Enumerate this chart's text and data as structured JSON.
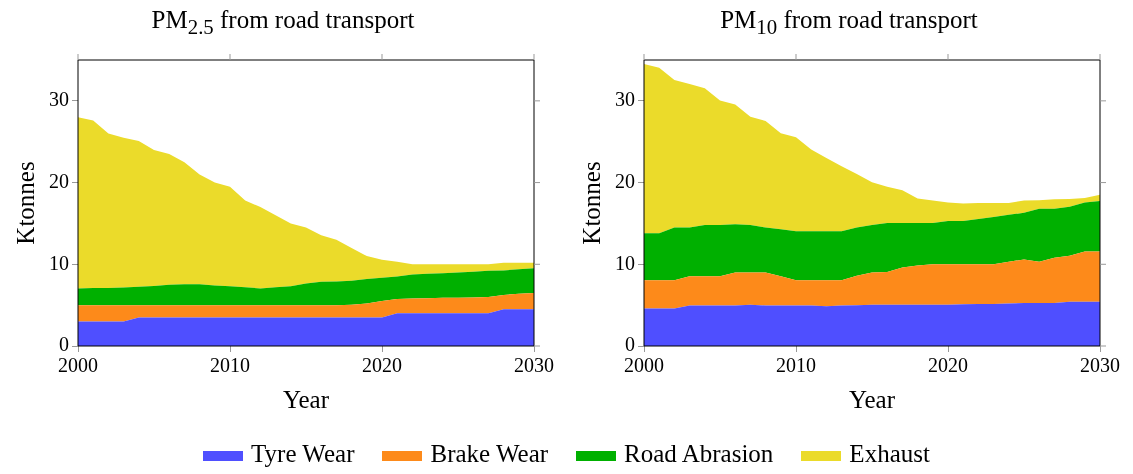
{
  "chart_data": [
    {
      "type": "area",
      "title": "PM$_{2.5}$ from road transport",
      "xlabel": "Year",
      "ylabel": "Ktonnes",
      "stacked": true,
      "legend": "bottom",
      "grid": false,
      "x": [
        2000,
        2001,
        2002,
        2003,
        2004,
        2005,
        2006,
        2007,
        2008,
        2009,
        2010,
        2011,
        2012,
        2013,
        2014,
        2015,
        2016,
        2017,
        2018,
        2019,
        2020,
        2021,
        2022,
        2023,
        2024,
        2025,
        2026,
        2027,
        2028,
        2029,
        2030
      ],
      "xlim": [
        2000,
        2030
      ],
      "xticks": [
        2000,
        2010,
        2020,
        2030
      ],
      "ylim": [
        0,
        35
      ],
      "yticks": [
        0,
        10,
        20,
        30
      ],
      "series": [
        {
          "name": "Tyre Wear",
          "color": "#4f4fff",
          "values": [
            3,
            3,
            3,
            3,
            3.5,
            3.5,
            3.5,
            3.5,
            3.5,
            3.5,
            3.5,
            3.5,
            3.5,
            3.5,
            3.5,
            3.5,
            3.5,
            3.5,
            3.5,
            3.5,
            3.5,
            4,
            4,
            4,
            4,
            4,
            4,
            4,
            4.5,
            4.5,
            4.5
          ]
        },
        {
          "name": "Brake Wear",
          "color": "#fd8a1a",
          "values": [
            2,
            2,
            2,
            2,
            1.5,
            1.5,
            1.5,
            1.5,
            1.5,
            1.5,
            1.5,
            1.5,
            1.5,
            1.5,
            1.5,
            1.5,
            1.5,
            1.5,
            1.55,
            1.7,
            2,
            1.75,
            1.8,
            1.85,
            1.9,
            1.9,
            1.95,
            2,
            1.75,
            1.9,
            2
          ]
        },
        {
          "name": "Road Abrasion",
          "color": "#00b000",
          "values": [
            2.05,
            2.1,
            2.1,
            2.15,
            2.25,
            2.35,
            2.5,
            2.55,
            2.55,
            2.4,
            2.3,
            2.2,
            2.05,
            2.2,
            2.3,
            2.65,
            2.85,
            2.9,
            2.95,
            3,
            2.85,
            2.75,
            2.95,
            3,
            3,
            3.1,
            3.15,
            3.2,
            3,
            3,
            3
          ]
        },
        {
          "name": "Exhaust",
          "color": "#ebdb2a",
          "values": [
            20.95,
            20.5,
            18.9,
            18.35,
            17.85,
            16.65,
            16,
            14.95,
            13.45,
            12.6,
            12.2,
            10.6,
            9.95,
            8.8,
            7.7,
            6.85,
            5.7,
            5.1,
            4,
            2.8,
            2.2,
            1.8,
            1.25,
            1.15,
            1.1,
            1,
            0.9,
            0.8,
            0.95,
            0.8,
            0.7
          ]
        }
      ]
    },
    {
      "type": "area",
      "title": "PM$_{10}$ from road transport",
      "xlabel": "Year",
      "ylabel": "Ktonnes",
      "stacked": true,
      "legend": "bottom",
      "grid": false,
      "x": [
        2000,
        2001,
        2002,
        2003,
        2004,
        2005,
        2006,
        2007,
        2008,
        2009,
        2010,
        2011,
        2012,
        2013,
        2014,
        2015,
        2016,
        2017,
        2018,
        2019,
        2020,
        2021,
        2022,
        2023,
        2024,
        2025,
        2026,
        2027,
        2028,
        2029,
        2030
      ],
      "xlim": [
        2000,
        2030
      ],
      "xticks": [
        2000,
        2010,
        2020,
        2030
      ],
      "ylim": [
        0,
        35
      ],
      "yticks": [
        0,
        10,
        20,
        30
      ],
      "series": [
        {
          "name": "Tyre Wear",
          "color": "#4f4fff",
          "values": [
            4.6,
            4.6,
            4.6,
            4.95,
            4.95,
            4.95,
            4.95,
            5.05,
            4.95,
            4.95,
            4.95,
            4.95,
            4.85,
            4.95,
            5,
            5.05,
            5.05,
            5.05,
            5.05,
            5.05,
            5.05,
            5.1,
            5.15,
            5.15,
            5.2,
            5.25,
            5.25,
            5.25,
            5.4,
            5.4,
            5.4
          ]
        },
        {
          "name": "Brake Wear",
          "color": "#fd8a1a",
          "values": [
            3.45,
            3.45,
            3.45,
            3.6,
            3.6,
            3.6,
            4.05,
            3.95,
            4.05,
            3.6,
            3.1,
            3.1,
            3.2,
            3.1,
            3.6,
            3.95,
            4,
            4.55,
            4.8,
            4.95,
            4.95,
            4.9,
            4.85,
            4.85,
            5.1,
            5.35,
            5.05,
            5.55,
            5.65,
            6.15,
            6.15
          ]
        },
        {
          "name": "Road Abrasion",
          "color": "#00b000",
          "values": [
            5.75,
            5.75,
            6.45,
            5.95,
            6.25,
            6.25,
            5.9,
            5.8,
            5.5,
            5.75,
            6,
            6,
            6,
            6,
            5.9,
            5.8,
            6,
            5.45,
            5.2,
            5.05,
            5.3,
            5.3,
            5.55,
            5.8,
            5.75,
            5.7,
            6.5,
            6,
            6,
            6,
            6.2
          ]
        },
        {
          "name": "Exhaust",
          "color": "#ebdb2a",
          "values": [
            20.7,
            20.25,
            18.05,
            17.55,
            16.75,
            15.25,
            14.65,
            13.25,
            13.05,
            11.75,
            11.5,
            10,
            8.95,
            7.95,
            6.55,
            5.25,
            4.45,
            4,
            3,
            2.75,
            2.25,
            2.15,
            1.95,
            1.7,
            1.45,
            1.5,
            1.05,
            1.15,
            0.95,
            0.55,
            0.75
          ]
        }
      ]
    }
  ]
}
